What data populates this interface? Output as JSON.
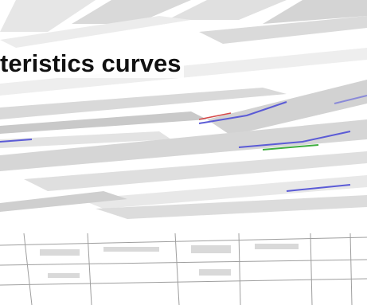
{
  "slide": {
    "title": "teristics curves"
  },
  "colors": {
    "stripe": "#d9d9d9",
    "stripe_dark": "#9e9e9e",
    "accent_blue": "#5b5bd6",
    "accent_green": "#3fae3f",
    "accent_red": "#d64a4a"
  },
  "icons": {
    "main_graphic": "distorted-curves-graphic",
    "bottom_strip": "distorted-table-strip"
  }
}
